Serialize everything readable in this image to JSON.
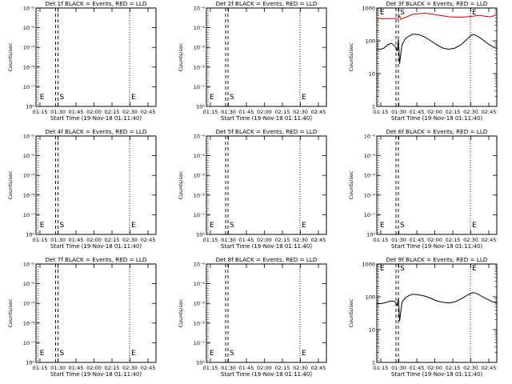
{
  "colors": {
    "events": "#000000",
    "lld": "#dd0000",
    "frame": "#000000",
    "background": "#ffffff"
  },
  "chart_data": [
    {
      "type": "line",
      "title": "Det 1f BLACK = Events, RED = LLD",
      "xlabel": "Start Time (19-Nov-18 01:11:40)",
      "ylabel": "Counts/sec",
      "scale": "linear",
      "xlim": [
        "01:11:40",
        "02:51:40"
      ],
      "ylim": [
        0,
        1e-06
      ],
      "xticks": [
        "01:15",
        "01:30",
        "01:45",
        "02:00",
        "02:15",
        "02:30",
        "02:45"
      ],
      "yticks": [
        "10⁻⁶",
        "10⁻⁶",
        "10⁻⁶",
        "10⁻⁶",
        "10⁻⁷",
        "10⁰"
      ],
      "markers": [
        {
          "label": "E",
          "time": "01:13:30",
          "style": "dotted"
        },
        {
          "label": "S",
          "time": "01:30:00",
          "style": "dashed"
        },
        {
          "label": "E",
          "time": "02:29:40",
          "style": "dotted"
        }
      ],
      "series": []
    },
    {
      "type": "line",
      "title": "Det 2f BLACK = Events, RED = LLD",
      "xlabel": "Start Time (19-Nov-18 01:11:40)",
      "ylabel": "Counts/sec",
      "scale": "linear",
      "xlim": [
        "01:11:40",
        "02:51:40"
      ],
      "ylim": [
        0,
        1e-06
      ],
      "xticks": [
        "01:15",
        "01:30",
        "01:45",
        "02:00",
        "02:15",
        "02:30",
        "02:45"
      ],
      "yticks": [
        "10⁻⁶",
        "10⁻⁶",
        "10⁻⁶",
        "10⁻⁶",
        "10⁻⁷",
        "10⁰"
      ],
      "markers": [
        {
          "label": "E",
          "time": "01:13:00",
          "style": "dotted"
        },
        {
          "label": "S",
          "time": "01:29:40",
          "style": "dashed"
        },
        {
          "label": "E",
          "time": "02:29:40",
          "style": "dotted"
        }
      ],
      "series": []
    },
    {
      "type": "line",
      "title": "Det 3f BLACK = Events, RED = LLD",
      "xlabel": "Start Time (19-Nov-18 01:11:40)",
      "ylabel": "Counts/sec",
      "scale": "log",
      "xlim": [
        "01:11:40",
        "02:51:40"
      ],
      "ylim": [
        1,
        1000
      ],
      "xticks": [
        "01:15",
        "01:30",
        "01:45",
        "02:00",
        "02:15",
        "02:30",
        "02:45"
      ],
      "yticks": [
        "1000",
        "100",
        "10",
        "1"
      ],
      "markers": [
        {
          "label": "E",
          "time": "01:13:00",
          "style": "dotted"
        },
        {
          "label": "S",
          "time": "01:29:40",
          "style": "dashed"
        },
        {
          "label": "E",
          "time": "02:29:40",
          "style": "dotted"
        }
      ],
      "series": [
        {
          "color": "#dd0000",
          "x": [
            0,
            5,
            10,
            15,
            18,
            19,
            20,
            25,
            30,
            40,
            50,
            60,
            70,
            80,
            85,
            90,
            95,
            100
          ],
          "y": [
            480,
            470,
            470,
            480,
            490,
            580,
            450,
            540,
            640,
            700,
            620,
            540,
            520,
            560,
            600,
            560,
            540,
            620
          ]
        },
        {
          "color": "#000000",
          "x": [
            0,
            3,
            6,
            9,
            12,
            15,
            17,
            18,
            18.5,
            19,
            20,
            21,
            24,
            27,
            30,
            35,
            40,
            45,
            50,
            55,
            60,
            65,
            70,
            75,
            78,
            80,
            82,
            85,
            88,
            91,
            94,
            97,
            100
          ],
          "y": [
            55,
            55,
            60,
            75,
            85,
            70,
            50,
            110,
            45,
            20,
            40,
            75,
            120,
            140,
            160,
            155,
            130,
            100,
            75,
            60,
            55,
            60,
            75,
            110,
            140,
            155,
            150,
            130,
            110,
            90,
            75,
            65,
            58
          ]
        }
      ]
    },
    {
      "type": "line",
      "title": "Det 4f BLACK = Events, RED = LLD",
      "xlabel": "Start Time (19-Nov-18 01:11:40)",
      "ylabel": "Counts/sec",
      "scale": "linear",
      "xlim": [
        "01:11:40",
        "02:51:40"
      ],
      "ylim": [
        0,
        1e-06
      ],
      "xticks": [
        "01:15",
        "01:30",
        "01:45",
        "02:00",
        "02:15",
        "02:30",
        "02:45"
      ],
      "yticks": [
        "10⁻⁶",
        "10⁻⁶",
        "10⁻⁶",
        "10⁻⁶",
        "10⁻⁷",
        "10⁰"
      ],
      "markers": [
        {
          "label": "E",
          "time": "01:13:30",
          "style": "dotted"
        },
        {
          "label": "S",
          "time": "01:30:00",
          "style": "dashed"
        },
        {
          "label": "E",
          "time": "02:29:40",
          "style": "dotted"
        }
      ],
      "series": []
    },
    {
      "type": "line",
      "title": "Det 5f BLACK = Events, RED = LLD",
      "xlabel": "Start Time (19-Nov-18 01:11:40)",
      "ylabel": "Counts/sec",
      "scale": "linear",
      "xlim": [
        "01:11:40",
        "02:51:40"
      ],
      "ylim": [
        0,
        1e-06
      ],
      "xticks": [
        "01:15",
        "01:30",
        "01:45",
        "02:00",
        "02:15",
        "02:30",
        "02:45"
      ],
      "yticks": [
        "10⁻⁶",
        "10⁻⁶",
        "10⁻⁶",
        "10⁻⁶",
        "10⁻⁷",
        "10⁰"
      ],
      "markers": [
        {
          "label": "E",
          "time": "01:13:00",
          "style": "dotted"
        },
        {
          "label": "S",
          "time": "01:29:40",
          "style": "dashed"
        },
        {
          "label": "E",
          "time": "02:29:40",
          "style": "dotted"
        }
      ],
      "series": []
    },
    {
      "type": "line",
      "title": "Det 6f BLACK = Events, RED = LLD",
      "xlabel": "Start Time (19-Nov-18 01:11:40)",
      "ylabel": "Counts/sec",
      "scale": "linear",
      "xlim": [
        "01:11:40",
        "02:51:40"
      ],
      "ylim": [
        0,
        1e-06
      ],
      "xticks": [
        "01:15",
        "01:30",
        "01:45",
        "02:00",
        "02:15",
        "02:30",
        "02:45"
      ],
      "yticks": [
        "10⁻⁶",
        "10⁻⁶",
        "10⁻⁶",
        "10⁻⁶",
        "10⁻⁷",
        "10⁰"
      ],
      "markers": [
        {
          "label": "E",
          "time": "01:13:00",
          "style": "dotted"
        },
        {
          "label": "S",
          "time": "01:29:40",
          "style": "dashed"
        },
        {
          "label": "E",
          "time": "02:29:40",
          "style": "dotted"
        }
      ],
      "series": []
    },
    {
      "type": "line",
      "title": "Det 7f BLACK = Events, RED = LLD",
      "xlabel": "Start Time (19-Nov-18 01:11:40)",
      "ylabel": "Counts/sec",
      "scale": "linear",
      "xlim": [
        "01:11:40",
        "02:51:40"
      ],
      "ylim": [
        0,
        1e-06
      ],
      "xticks": [
        "01:15",
        "01:30",
        "01:45",
        "02:00",
        "02:15",
        "02:30",
        "02:45"
      ],
      "yticks": [
        "10⁻⁶",
        "10⁻⁶",
        "10⁻⁶",
        "10⁻⁶",
        "10⁻⁷",
        "10⁰"
      ],
      "markers": [
        {
          "label": "E",
          "time": "01:13:30",
          "style": "dotted"
        },
        {
          "label": "S",
          "time": "01:30:00",
          "style": "dashed"
        },
        {
          "label": "E",
          "time": "02:29:40",
          "style": "dotted"
        }
      ],
      "series": []
    },
    {
      "type": "line",
      "title": "Det 8f BLACK = Events, RED = LLD",
      "xlabel": "Start Time (19-Nov-18 01:11:40)",
      "ylabel": "Counts/sec",
      "scale": "linear",
      "xlim": [
        "01:11:40",
        "02:51:40"
      ],
      "ylim": [
        0,
        1e-06
      ],
      "xticks": [
        "01:15",
        "01:30",
        "01:45",
        "02:00",
        "02:15",
        "02:30",
        "02:45"
      ],
      "yticks": [
        "10⁻⁶",
        "10⁻⁶",
        "10⁻⁶",
        "10⁻⁶",
        "10⁻⁷",
        "10⁰"
      ],
      "markers": [
        {
          "label": "E",
          "time": "01:13:00",
          "style": "dotted"
        },
        {
          "label": "S",
          "time": "01:29:40",
          "style": "dashed"
        },
        {
          "label": "E",
          "time": "02:29:40",
          "style": "dotted"
        }
      ],
      "series": []
    },
    {
      "type": "line",
      "title": "Det 9f BLACK = Events, RED = LLD",
      "xlabel": "Start Time (19-Nov-18 01:11:40)",
      "ylabel": "Counts/sec",
      "scale": "log",
      "xlim": [
        "01:11:40",
        "02:51:40"
      ],
      "ylim": [
        1,
        1000
      ],
      "xticks": [
        "01:15",
        "01:30",
        "01:45",
        "02:00",
        "02:15",
        "02:30",
        "02:45"
      ],
      "yticks": [
        "1000",
        "100",
        "10",
        "1"
      ],
      "markers": [
        {
          "label": "E",
          "time": "01:13:00",
          "style": "dotted"
        },
        {
          "label": "S",
          "time": "01:29:40",
          "style": "dashed"
        },
        {
          "label": "E",
          "time": "02:29:40",
          "style": "dotted"
        }
      ],
      "series": [
        {
          "color": "#000000",
          "x": [
            0,
            3,
            6,
            9,
            12,
            15,
            17,
            18,
            18.5,
            19,
            20,
            21,
            24,
            27,
            30,
            35,
            40,
            45,
            50,
            55,
            60,
            65,
            70,
            75,
            78,
            80,
            82,
            85,
            88,
            91,
            94,
            97,
            100
          ],
          "y": [
            62,
            62,
            65,
            70,
            75,
            72,
            55,
            90,
            40,
            18,
            35,
            70,
            95,
            110,
            120,
            115,
            105,
            90,
            75,
            68,
            65,
            70,
            85,
            110,
            125,
            135,
            130,
            118,
            100,
            88,
            78,
            70,
            65
          ]
        }
      ]
    }
  ]
}
